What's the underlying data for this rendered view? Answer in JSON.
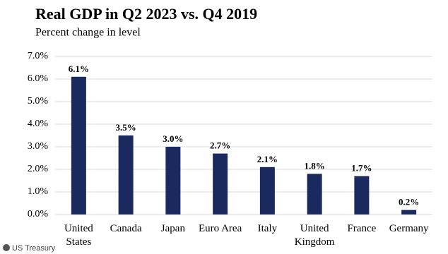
{
  "chart_data": {
    "type": "bar",
    "title": "Real GDP in Q2 2023 vs. Q4 2019",
    "subtitle": "Percent change in level",
    "categories": [
      "United States",
      "Canada",
      "Japan",
      "Euro Area",
      "Italy",
      "United Kingdom",
      "France",
      "Germany"
    ],
    "values": [
      6.1,
      3.5,
      3.0,
      2.7,
      2.1,
      1.8,
      1.7,
      0.2
    ],
    "value_labels": [
      "6.1%",
      "3.5%",
      "3.0%",
      "2.7%",
      "2.1%",
      "1.8%",
      "1.7%",
      "0.2%"
    ],
    "color": "#1b2a5e",
    "ylim": [
      0,
      7
    ],
    "yticks": [
      {
        "value": 0,
        "label": "0.0%"
      },
      {
        "value": 1,
        "label": "1.0%"
      },
      {
        "value": 2,
        "label": "2.0%"
      },
      {
        "value": 3,
        "label": "3.0%"
      },
      {
        "value": 4,
        "label": "4.0%"
      },
      {
        "value": 5,
        "label": "5.0%"
      },
      {
        "value": 6,
        "label": "6.0%"
      },
      {
        "value": 7,
        "label": "7.0%"
      }
    ],
    "grid": true,
    "source": "US Treasury"
  }
}
